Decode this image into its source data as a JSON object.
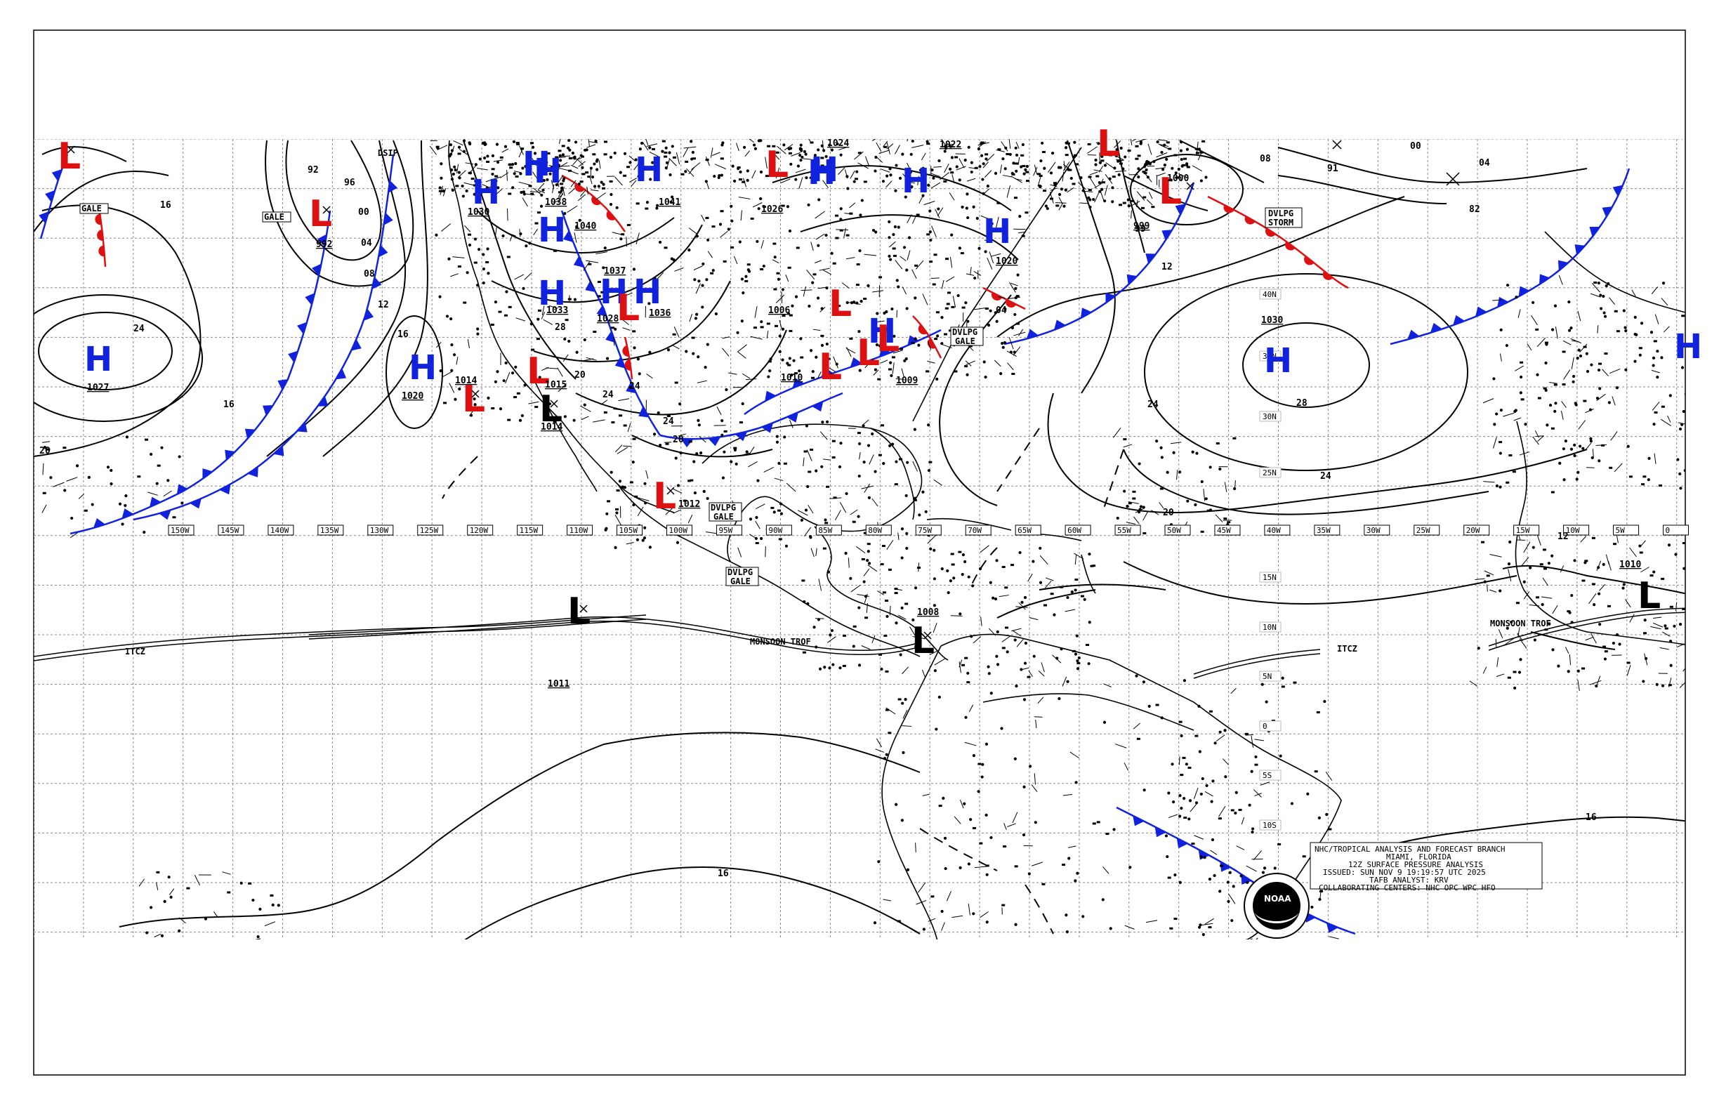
{
  "map": {
    "lon_labels": [
      "150W",
      "145W",
      "140W",
      "135W",
      "130W",
      "125W",
      "120W",
      "115W",
      "110W",
      "105W",
      "100W",
      "95W",
      "90W",
      "85W",
      "80W",
      "75W",
      "70W",
      "65W",
      "60W",
      "55W",
      "50W",
      "45W",
      "40W",
      "35W",
      "30W",
      "25W",
      "20W",
      "15W",
      "10W",
      "5W",
      "0"
    ],
    "lat_labels": [
      "40N",
      "35N",
      "30N",
      "25N",
      "15N",
      "10N",
      "5N",
      "0",
      "5S",
      "10S"
    ],
    "highs": [
      {
        "symbol": "H",
        "value": "1027"
      },
      {
        "symbol": "H",
        "value": "1020"
      },
      {
        "symbol": "H",
        "value": "1030"
      },
      {
        "symbol": "H",
        "value": "1033"
      },
      {
        "symbol": "H",
        "value": "1040"
      },
      {
        "symbol": "H",
        "value": "1038"
      },
      {
        "symbol": "H",
        "value": "1037"
      },
      {
        "symbol": "H",
        "value": "1036"
      },
      {
        "symbol": "H",
        "value": "1028"
      },
      {
        "symbol": "H",
        "value": "1041"
      },
      {
        "symbol": "H",
        "value": "1026"
      },
      {
        "symbol": "H",
        "value": "1024"
      },
      {
        "symbol": "H",
        "value": "1022"
      },
      {
        "symbol": "H",
        "value": "1020"
      },
      {
        "symbol": "H",
        "value": "1030"
      },
      {
        "symbol": "H",
        "value": "1033"
      }
    ],
    "lows": [
      {
        "symbol": "L",
        "value": "992"
      },
      {
        "symbol": "L",
        "value": "1014"
      },
      {
        "symbol": "L",
        "value": "1015"
      },
      {
        "symbol": "L",
        "value": "1014"
      },
      {
        "symbol": "L",
        "value": "1012"
      },
      {
        "symbol": "L",
        "value": "1006"
      },
      {
        "symbol": "L",
        "value": "1010"
      },
      {
        "symbol": "L",
        "value": "1009"
      },
      {
        "symbol": "L",
        "value": "999"
      },
      {
        "symbol": "L",
        "value": "1000"
      },
      {
        "symbol": "L",
        "value": "1008"
      },
      {
        "symbol": "L",
        "value": "1011"
      },
      {
        "symbol": "L",
        "value": "1010"
      }
    ],
    "isobar_labels": [
      "16",
      "24",
      "16",
      "20",
      "92",
      "96",
      "00",
      "04",
      "08",
      "12",
      "16",
      "20",
      "24",
      "28",
      "24",
      "20",
      "24",
      "04",
      "12",
      "99",
      "91",
      "00",
      "04",
      "82",
      "08",
      "24",
      "28",
      "24",
      "20",
      "16",
      "16",
      "12"
    ],
    "boxes": [
      "GALE",
      "GALE",
      "DSIP",
      "DVLPG GALE",
      "DVLPG GALE",
      "DVLPG GALE",
      "DVLPG STORM"
    ],
    "lines": {
      "itcz": "ITCZ",
      "monsoon": "MONSOON TROF",
      "monsoon_east": "MONSOON TROF",
      "itcz_east": "ITCZ"
    },
    "legend": {
      "line1": "NHC/TROPICAL ANALYSIS AND FORECAST BRANCH",
      "line2": "MIAMI, FLORIDA",
      "line3": "12Z SURFACE PRESSURE ANALYSIS",
      "line4": "ISSUED: SUN NOV 9 19:19:57 UTC 2025",
      "line5": "TAFB ANALYST: KRV",
      "line6": "COLLABORATING CENTERS: NHC OPC WPC HFO"
    },
    "logo_text": "NOAA",
    "colors": {
      "high": "#1122dd",
      "low": "#dd1111",
      "cold_front": "#1122dd",
      "warm_front": "#dd1111",
      "occluded": "#8833cc"
    }
  }
}
